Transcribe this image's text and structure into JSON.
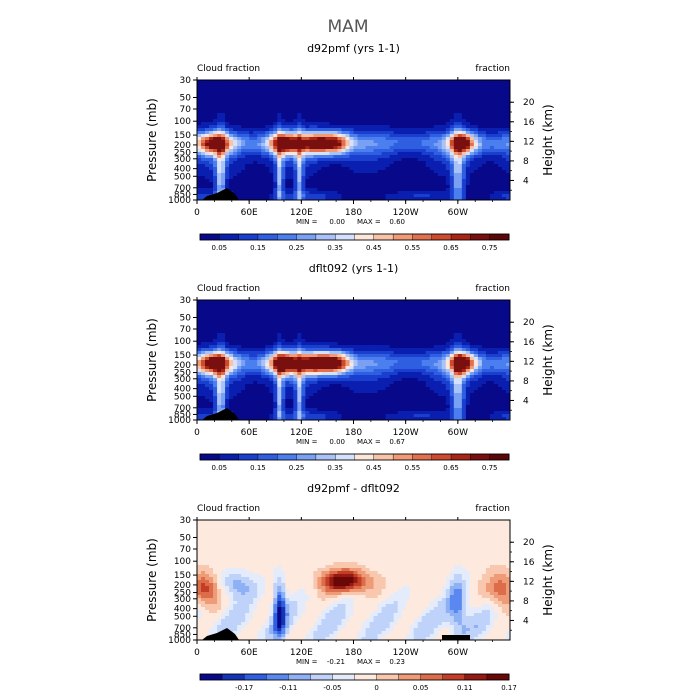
{
  "figure": {
    "title": "MAM"
  },
  "colors": {
    "abs": [
      "#08088a",
      "#0a1fb0",
      "#1a3fcf",
      "#2f5fe0",
      "#4b7ff0",
      "#7aa0f4",
      "#a9c2f7",
      "#d6e2fb",
      "#fde6da",
      "#f8c3a8",
      "#f09a76",
      "#e2704f",
      "#cc4a2e",
      "#aa2516",
      "#7a0f0f"
    ],
    "diff": [
      "#08088a",
      "#1434b5",
      "#2f5fe0",
      "#5a87f0",
      "#8eb0f5",
      "#bfd2f9",
      "#e4ecfc",
      "#fde9de",
      "#f8c7ae",
      "#ef9b78",
      "#dc6d4b",
      "#c43d27",
      "#951a13",
      "#6a0808"
    ]
  },
  "chart_data": [
    {
      "type": "heatmap",
      "title": "d92pmf (yrs 1-1)",
      "left_label": "Cloud fraction",
      "right_label": "fraction",
      "ylabel": "Pressure (mb)",
      "y2label": "Height (km)",
      "x_ticks": [
        "0",
        "60E",
        "120E",
        "180",
        "120W",
        "60W"
      ],
      "y_ticks": [
        "30",
        "50",
        "70",
        "100",
        "150",
        "200",
        "250",
        "300",
        "400",
        "500",
        "700",
        "850",
        "1000"
      ],
      "y2_ticks": [
        "20",
        "16",
        "12",
        "8",
        "4"
      ],
      "stats": {
        "min_label": "MIN =",
        "min": "0.00",
        "max_label": "MAX =",
        "max": "0.60"
      },
      "colorbar_labels": [
        "0.05",
        "0.15",
        "0.25",
        "0.35",
        "0.45",
        "0.55",
        "0.65",
        "0.75"
      ],
      "ylim": [
        1000,
        30
      ]
    },
    {
      "type": "heatmap",
      "title": "dflt092 (yrs 1-1)",
      "left_label": "Cloud fraction",
      "right_label": "fraction",
      "ylabel": "Pressure (mb)",
      "y2label": "Height (km)",
      "x_ticks": [
        "0",
        "60E",
        "120E",
        "180",
        "120W",
        "60W"
      ],
      "y_ticks": [
        "30",
        "50",
        "70",
        "100",
        "150",
        "200",
        "250",
        "300",
        "400",
        "500",
        "700",
        "850",
        "1000"
      ],
      "y2_ticks": [
        "20",
        "16",
        "12",
        "8",
        "4"
      ],
      "stats": {
        "min_label": "MIN =",
        "min": "0.00",
        "max_label": "MAX =",
        "max": "0.67"
      },
      "colorbar_labels": [
        "0.05",
        "0.15",
        "0.25",
        "0.35",
        "0.45",
        "0.55",
        "0.65",
        "0.75"
      ],
      "ylim": [
        1000,
        30
      ]
    },
    {
      "type": "heatmap",
      "title": "d92pmf - dflt092",
      "left_label": "Cloud fraction",
      "right_label": "fraction",
      "ylabel": "Pressure (mb)",
      "y2label": "Height (km)",
      "x_ticks": [
        "0",
        "60E",
        "120E",
        "180",
        "120W",
        "60W"
      ],
      "y_ticks": [
        "30",
        "50",
        "70",
        "100",
        "150",
        "200",
        "250",
        "300",
        "400",
        "500",
        "700",
        "850",
        "1000"
      ],
      "y2_ticks": [
        "20",
        "16",
        "12",
        "8",
        "4"
      ],
      "stats": {
        "min_label": "MIN =",
        "min": "-0.21",
        "max_label": "MAX =",
        "max": "0.23"
      },
      "colorbar_labels": [
        "-0.17",
        "-0.11",
        "-0.05",
        "0",
        "0.05",
        "0.11",
        "0.17"
      ],
      "ylim": [
        1000,
        30
      ]
    }
  ]
}
